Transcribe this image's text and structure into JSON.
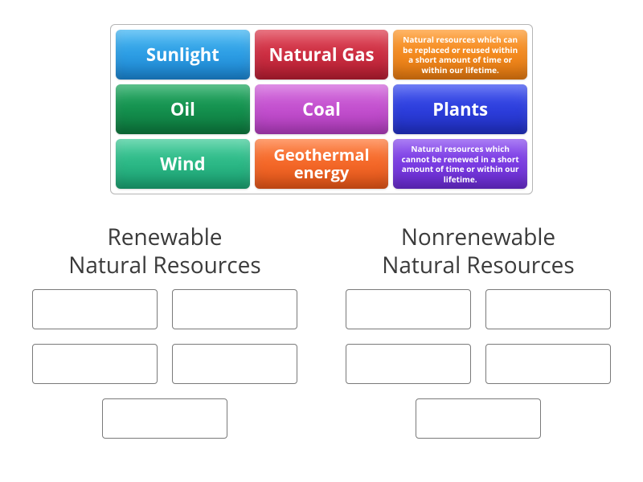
{
  "source_tiles": [
    {
      "id": "sunlight",
      "label": "Sunlight",
      "bg_top": "#3fb4f2",
      "bg_bottom": "#1b87d6",
      "fontsize": 22,
      "small": false
    },
    {
      "id": "natural-gas",
      "label": "Natural Gas",
      "bg_top": "#e04052",
      "bg_bottom": "#b81d32",
      "fontsize": 22,
      "small": false
    },
    {
      "id": "renewable-def",
      "label": "Natural resources which can be replaced or reused within a short amount of time or within our lifetime.",
      "bg_top": "#ff9a2e",
      "bg_bottom": "#e77a10",
      "fontsize": 10,
      "small": true
    },
    {
      "id": "oil",
      "label": "Oil",
      "bg_top": "#1ea85f",
      "bg_bottom": "#0c7a3e",
      "fontsize": 22,
      "small": false
    },
    {
      "id": "coal",
      "label": "Coal",
      "bg_top": "#d264dc",
      "bg_bottom": "#b33cc0",
      "fontsize": 22,
      "small": false
    },
    {
      "id": "plants",
      "label": "Plants",
      "bg_top": "#3a4df0",
      "bg_bottom": "#2030c8",
      "fontsize": 22,
      "small": false
    },
    {
      "id": "wind",
      "label": "Wind",
      "bg_top": "#3ecb98",
      "bg_bottom": "#1aa574",
      "fontsize": 22,
      "small": false
    },
    {
      "id": "geothermal",
      "label": "Geothermal energy",
      "bg_top": "#ff7a3a",
      "bg_bottom": "#e85618",
      "fontsize": 20,
      "small": false
    },
    {
      "id": "nonrenewable-def",
      "label": "Natural resources which cannot be renewed in a short amount of time or within our lifetime.",
      "bg_top": "#8a4df0",
      "bg_bottom": "#6a2bd4",
      "fontsize": 10,
      "small": true
    }
  ],
  "categories": [
    {
      "id": "renewable",
      "title_line1": "Renewable",
      "title_line2": "Natural Resources",
      "slot_count": 5
    },
    {
      "id": "nonrenewable",
      "title_line1": "Nonrenewable",
      "title_line2": "Natural Resources",
      "slot_count": 5
    }
  ],
  "colors": {
    "page_bg": "#ffffff",
    "panel_border": "#b5b5b5",
    "slot_border": "#7a7a7a",
    "title_color": "#3a3a3a"
  }
}
